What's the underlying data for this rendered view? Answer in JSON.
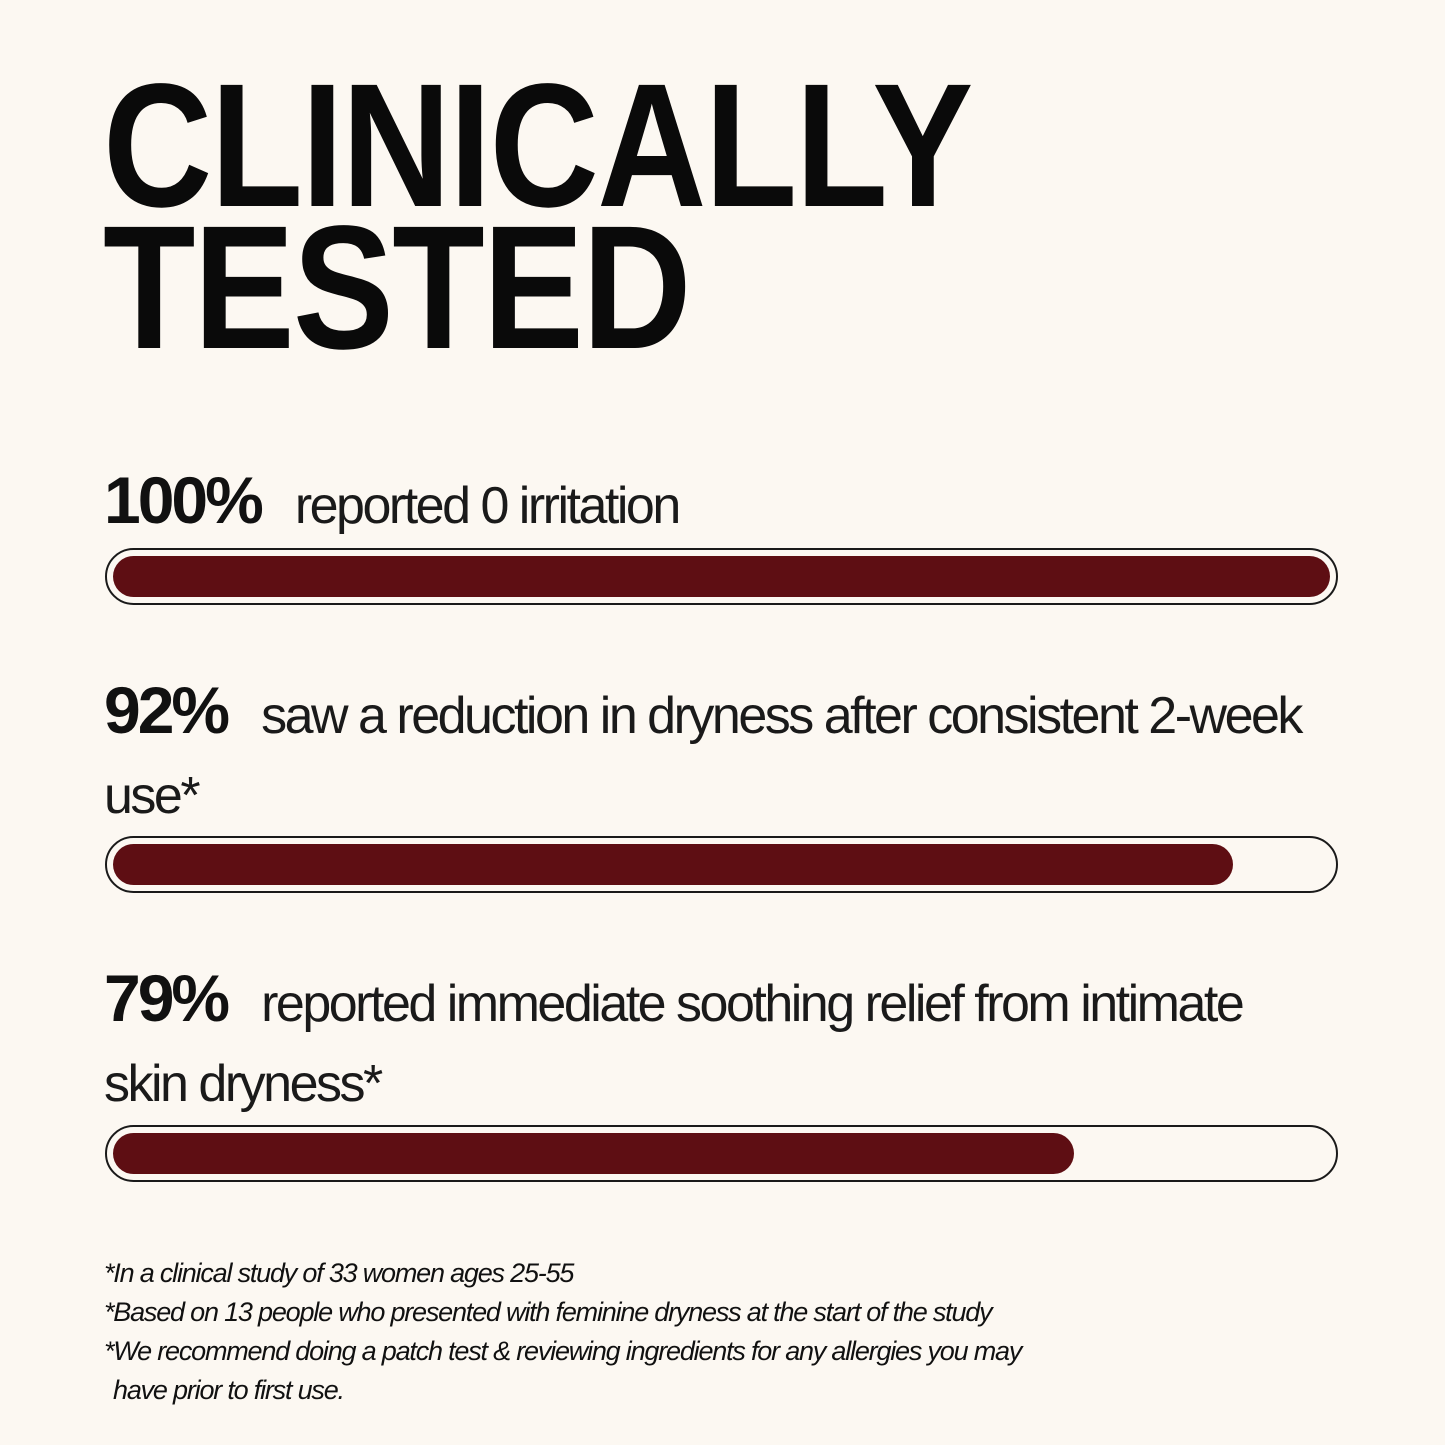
{
  "title": {
    "line1": "CLINICALLY",
    "line2": "TESTED"
  },
  "colors": {
    "background": "#fcf8f2",
    "bar_fill": "#5e0e13",
    "text": "#111111"
  },
  "stats": [
    {
      "percent_label": "100%",
      "value": 100,
      "description": "reported 0 irritation"
    },
    {
      "percent_label": "92%",
      "value": 92,
      "description": "saw a reduction in dryness after consistent 2-week use*"
    },
    {
      "percent_label": "79%",
      "value": 79,
      "description": "reported immediate soothing relief from intimate skin dryness*"
    }
  ],
  "footnotes": [
    "*In a clinical study of 33 women ages 25-55",
    "*Based on 13 people who presented with feminine dryness at the start of the study",
    "*We recommend doing a patch test & reviewing ingredients for any allergies you may",
    "have prior to first use."
  ]
}
